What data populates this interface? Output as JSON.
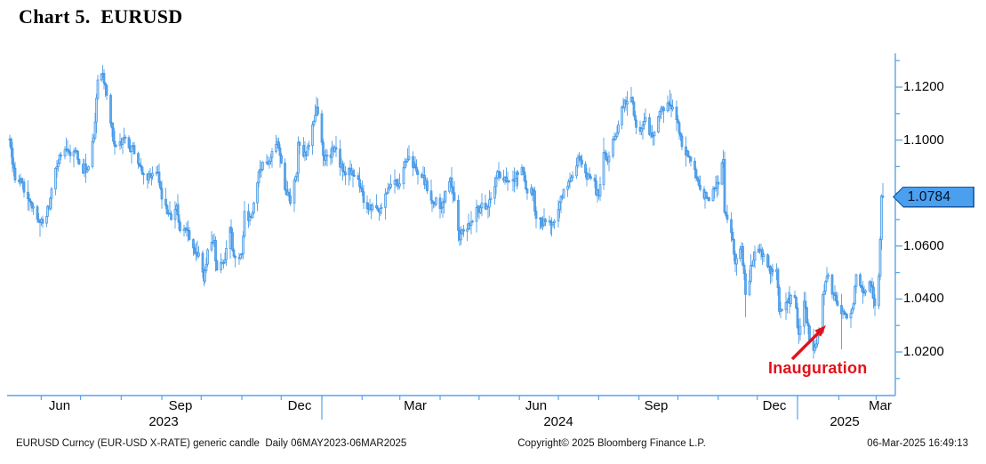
{
  "title": "Chart 5.  EURUSD",
  "annotation": {
    "label": "Inauguration"
  },
  "footer": {
    "left": "EURUSD Curncy (EUR-USD X-RATE) generic candle  Daily 06MAY2023-06MAR2025",
    "center": "Copyright© 2025 Bloomberg Finance L.P.",
    "right": "06-Mar-2025 16:49:13"
  },
  "y_axis": {
    "last_price_label": "1.0784",
    "last_price_value": 1.0784,
    "labels": [
      {
        "text": "1.1200",
        "value": 1.12
      },
      {
        "text": "1.1000",
        "value": 1.1
      },
      {
        "text": "1.0800",
        "value": 1.08
      },
      {
        "text": "1.0600",
        "value": 1.06
      },
      {
        "text": "1.0400",
        "value": 1.04
      },
      {
        "text": "1.0200",
        "value": 1.02
      }
    ]
  },
  "x_axis": {
    "months": [
      {
        "label": "Jun",
        "date": "2023-06-15"
      },
      {
        "label": "Sep",
        "date": "2023-09-15"
      },
      {
        "label": "Dec",
        "date": "2023-12-15"
      },
      {
        "label": "Mar",
        "date": "2024-03-13"
      },
      {
        "label": "Jun",
        "date": "2024-06-14"
      },
      {
        "label": "Sep",
        "date": "2024-09-14"
      },
      {
        "label": "Dec",
        "date": "2024-12-14"
      },
      {
        "label": "Mar",
        "date": "2025-03-04"
      }
    ],
    "years": [
      {
        "label": "2023",
        "date": "2023-09-02"
      },
      {
        "label": "2024",
        "date": "2024-07-01"
      },
      {
        "label": "2025",
        "date": "2025-02-05"
      }
    ],
    "year_dividers": [
      "2024-01-01",
      "2025-01-01"
    ]
  },
  "colors": {
    "axis": "#5aa4ea",
    "candle_up_fill": "#bcdcf7",
    "candle_down_fill": "#5fa9ec",
    "candle_stroke": "#3b93e6",
    "annotation_red": "#e31219",
    "tag_fill": "#4a9fee",
    "tag_border": "#17579e"
  },
  "chart_data": {
    "type": "candlestick",
    "instrument": "EURUSD Curncy (EUR-USD X-RATE)",
    "period": "Daily",
    "range": "06MAY2023-06MAR2025",
    "last_close": 1.0784,
    "ylim": [
      1.003,
      1.133
    ],
    "y_tick_step": 0.01,
    "grid": false,
    "time_anchors": [
      [
        "2023-05-06",
        8
      ],
      [
        "2024-01-01",
        362
      ],
      [
        "2025-01-01",
        897
      ],
      [
        "2025-03-06",
        993
      ]
    ],
    "anchors": [
      [
        "2023-05-08",
        1.1004
      ],
      [
        "2023-05-12",
        1.0849
      ],
      [
        "2023-05-17",
        1.084
      ],
      [
        "2023-05-23",
        1.077
      ],
      [
        "2023-05-31",
        1.0688
      ],
      [
        "2023-06-05",
        1.0712
      ],
      [
        "2023-06-08",
        1.078
      ],
      [
        "2023-06-15",
        1.0944
      ],
      [
        "2023-06-22",
        1.0955
      ],
      [
        "2023-06-27",
        1.096
      ],
      [
        "2023-06-30",
        1.0909
      ],
      [
        "2023-07-06",
        1.0888
      ],
      [
        "2023-07-11",
        1.1008
      ],
      [
        "2023-07-14",
        1.1227
      ],
      [
        "2023-07-18",
        1.1252
      ],
      [
        "2023-07-24",
        1.1064
      ],
      [
        "2023-07-27",
        1.0977
      ],
      [
        "2023-08-01",
        1.0984
      ],
      [
        "2023-08-04",
        1.1009
      ],
      [
        "2023-08-08",
        1.0957
      ],
      [
        "2023-08-10",
        1.098
      ],
      [
        "2023-08-15",
        1.0903
      ],
      [
        "2023-08-18",
        1.0872
      ],
      [
        "2023-08-23",
        1.086
      ],
      [
        "2023-08-29",
        1.088
      ],
      [
        "2023-09-01",
        1.0777
      ],
      [
        "2023-09-05",
        1.0722
      ],
      [
        "2023-09-08",
        1.07
      ],
      [
        "2023-09-12",
        1.0753
      ],
      [
        "2023-09-15",
        1.0658
      ],
      [
        "2023-09-20",
        1.066
      ],
      [
        "2023-09-26",
        1.0572
      ],
      [
        "2023-09-29",
        1.0573
      ],
      [
        "2023-10-03",
        1.0468
      ],
      [
        "2023-10-06",
        1.0586
      ],
      [
        "2023-10-11",
        1.0621
      ],
      [
        "2023-10-13",
        1.051
      ],
      [
        "2023-10-18",
        1.0538
      ],
      [
        "2023-10-23",
        1.067
      ],
      [
        "2023-10-26",
        1.0562
      ],
      [
        "2023-11-01",
        1.057
      ],
      [
        "2023-11-03",
        1.0731
      ],
      [
        "2023-11-08",
        1.0708
      ],
      [
        "2023-11-14",
        1.0879
      ],
      [
        "2023-11-17",
        1.0916
      ],
      [
        "2023-11-21",
        1.091
      ],
      [
        "2023-11-28",
        1.0993
      ],
      [
        "2023-11-29",
        1.097
      ],
      [
        "2023-12-05",
        1.0794
      ],
      [
        "2023-12-08",
        1.0761
      ],
      [
        "2023-12-13",
        1.0875
      ],
      [
        "2023-12-14",
        1.0992
      ],
      [
        "2023-12-20",
        1.0942
      ],
      [
        "2023-12-28",
        1.1125
      ],
      [
        "2024-01-02",
        1.0942
      ],
      [
        "2024-01-05",
        1.0944
      ],
      [
        "2024-01-11",
        1.0972
      ],
      [
        "2024-01-17",
        1.0882
      ],
      [
        "2024-01-24",
        1.0885
      ],
      [
        "2024-01-31",
        1.0817
      ],
      [
        "2024-02-05",
        1.0742
      ],
      [
        "2024-02-14",
        1.0727
      ],
      [
        "2024-02-22",
        1.0822
      ],
      [
        "2024-03-01",
        1.0835
      ],
      [
        "2024-03-08",
        1.0938
      ],
      [
        "2024-03-14",
        1.0882
      ],
      [
        "2024-03-19",
        1.0867
      ],
      [
        "2024-03-22",
        1.0808
      ],
      [
        "2024-04-01",
        1.0742
      ],
      [
        "2024-04-09",
        1.0857
      ],
      [
        "2024-04-16",
        1.0623
      ],
      [
        "2024-04-19",
        1.0656
      ],
      [
        "2024-04-26",
        1.0693
      ],
      [
        "2024-05-03",
        1.0762
      ],
      [
        "2024-05-08",
        1.0747
      ],
      [
        "2024-05-15",
        1.0882
      ],
      [
        "2024-05-24",
        1.0846
      ],
      [
        "2024-05-31",
        1.087
      ],
      [
        "2024-06-04",
        1.088
      ],
      [
        "2024-06-07",
        1.08
      ],
      [
        "2024-06-12",
        1.0808
      ],
      [
        "2024-06-14",
        1.0704
      ],
      [
        "2024-06-21",
        1.0691
      ],
      [
        "2024-06-26",
        1.068
      ],
      [
        "2024-07-03",
        1.0788
      ],
      [
        "2024-07-08",
        1.0825
      ],
      [
        "2024-07-17",
        1.0938
      ],
      [
        "2024-07-23",
        1.0853
      ],
      [
        "2024-07-26",
        1.0856
      ],
      [
        "2024-08-01",
        1.0789
      ],
      [
        "2024-08-05",
        1.0953
      ],
      [
        "2024-08-08",
        1.0918
      ],
      [
        "2024-08-14",
        1.1014
      ],
      [
        "2024-08-21",
        1.115
      ],
      [
        "2024-08-26",
        1.1161
      ],
      [
        "2024-08-30",
        1.1048
      ],
      [
        "2024-09-03",
        1.1043
      ],
      [
        "2024-09-06",
        1.1085
      ],
      [
        "2024-09-11",
        1.1013
      ],
      [
        "2024-09-18",
        1.1118
      ],
      [
        "2024-09-25",
        1.1132
      ],
      [
        "2024-10-01",
        1.1066
      ],
      [
        "2024-10-04",
        1.0975
      ],
      [
        "2024-10-10",
        1.0936
      ],
      [
        "2024-10-17",
        1.083
      ],
      [
        "2024-10-23",
        1.0782
      ],
      [
        "2024-10-29",
        1.0818
      ],
      [
        "2024-11-01",
        1.0834
      ],
      [
        "2024-11-05",
        1.0927
      ],
      [
        "2024-11-06",
        1.0727
      ],
      [
        "2024-11-12",
        1.0624
      ],
      [
        "2024-11-14",
        1.0532
      ],
      [
        "2024-11-19",
        1.0598
      ],
      [
        "2024-11-22",
        1.0417
      ],
      [
        "2024-11-29",
        1.0577
      ],
      [
        "2024-12-06",
        1.0567
      ],
      [
        "2024-12-11",
        1.0496
      ],
      [
        "2024-12-16",
        1.0511
      ],
      [
        "2024-12-18",
        1.0353
      ],
      [
        "2024-12-24",
        1.039
      ],
      [
        "2024-12-30",
        1.0406
      ],
      [
        "2025-01-02",
        1.0266
      ],
      [
        "2025-01-06",
        1.0392
      ],
      [
        "2025-01-10",
        1.0244
      ],
      [
        "2025-01-13",
        1.0206
      ],
      [
        "2025-01-17",
        1.0273
      ],
      [
        "2025-01-20",
        1.0416
      ],
      [
        "2025-01-24",
        1.0491
      ],
      [
        "2025-01-30",
        1.0392
      ],
      [
        "2025-02-03",
        1.0344
      ],
      [
        "2025-02-07",
        1.0328
      ],
      [
        "2025-02-12",
        1.0382
      ],
      [
        "2025-02-14",
        1.0492
      ],
      [
        "2025-02-19",
        1.0425
      ],
      [
        "2025-02-24",
        1.0465
      ],
      [
        "2025-02-28",
        1.0375
      ],
      [
        "2025-03-03",
        1.0487
      ],
      [
        "2025-03-04",
        1.0625
      ],
      [
        "2025-03-05",
        1.0789
      ],
      [
        "2025-03-06",
        1.0784
      ]
    ],
    "extremes": [
      [
        "2023-05-31",
        "lo",
        1.0635
      ],
      [
        "2023-07-18",
        "hi",
        1.1276
      ],
      [
        "2023-10-03",
        "lo",
        1.0448
      ],
      [
        "2023-11-29",
        "hi",
        1.1009
      ],
      [
        "2023-12-28",
        "hi",
        1.1139
      ],
      [
        "2024-02-14",
        "lo",
        1.0695
      ],
      [
        "2024-03-08",
        "hi",
        1.0981
      ],
      [
        "2024-04-16",
        "lo",
        1.0601
      ],
      [
        "2024-06-14",
        "lo",
        1.0667
      ],
      [
        "2024-08-05",
        "hi",
        1.1009
      ],
      [
        "2024-08-26",
        "hi",
        1.1201
      ],
      [
        "2024-09-25",
        "hi",
        1.119
      ],
      [
        "2024-11-05",
        "hi",
        1.0937
      ],
      [
        "2024-11-22",
        "lo",
        1.0332
      ],
      [
        "2025-01-13",
        "lo",
        1.0178
      ],
      [
        "2025-02-03",
        "lo",
        1.021
      ],
      [
        "2025-03-06",
        "hi",
        1.0838
      ]
    ]
  }
}
